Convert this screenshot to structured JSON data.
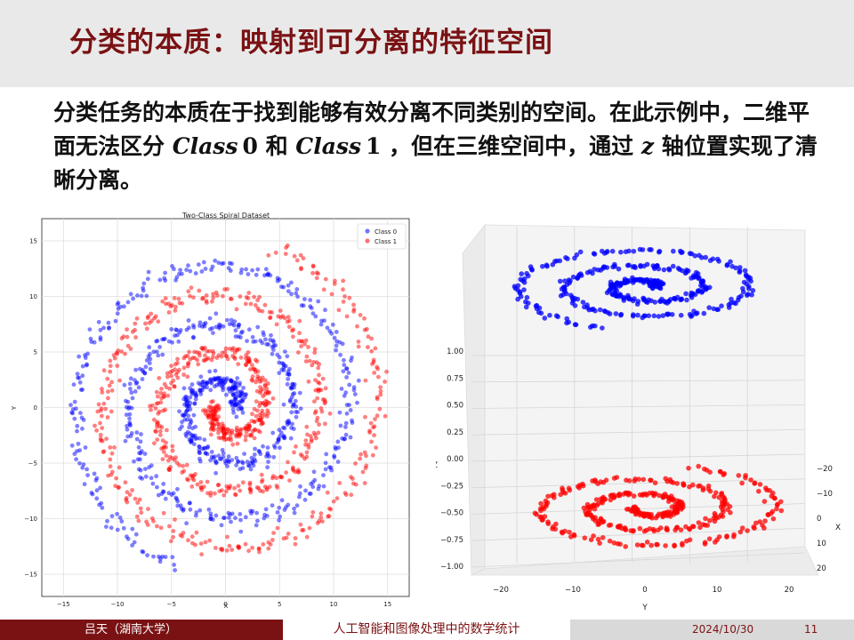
{
  "slide": {
    "title": "分类的本质：映射到可分离的特征空间",
    "para_a": "分类任务的本质在于找到能够有效分离不同类别的空间。在此示例中，二维平面无法区分 ",
    "class0": "Class",
    "class0_num": "0",
    "para_b": " 和 ",
    "class1": "Class",
    "class1_num": "1",
    "para_c": " ，但在三维空间中，通过 ",
    "zvar": "z",
    "para_d": " 轴位置实现了清晰分离。"
  },
  "footer": {
    "author": "吕天（湖南大学）",
    "course": "人工智能和图像处理中的数学统计",
    "date": "2024/10/30",
    "page": "11"
  },
  "chart_data": [
    {
      "type": "scatter",
      "title": "Two-Class Spiral Dataset",
      "xlabel": "X",
      "ylabel": "Y",
      "xlim": [
        -17,
        17
      ],
      "ylim": [
        -17,
        17
      ],
      "xticks": [
        -15,
        -10,
        -5,
        0,
        5,
        10,
        15
      ],
      "yticks": [
        -15,
        -10,
        -5,
        0,
        5,
        10,
        15
      ],
      "grid": true,
      "legend": "top-right",
      "spiral": {
        "start_radius": 1,
        "end_radius": 15,
        "turns": 2.7,
        "points_per_class": 800,
        "noise": 0.4
      },
      "series": [
        {
          "name": "Class 0",
          "color": "#0000ff",
          "z": 1
        },
        {
          "name": "Class 1",
          "color": "#ff0000",
          "z": -1
        }
      ]
    },
    {
      "type": "scatter",
      "xlabel": "X",
      "ylabel": "Y",
      "zlabel": "Z",
      "xticks": [
        "−20",
        "−10",
        "0",
        "10",
        "20"
      ],
      "yticks": [
        "−20",
        "−10",
        "0",
        "10",
        "20"
      ],
      "zticks": [
        "−1.00",
        "−0.75",
        "−0.50",
        "−0.25",
        "0.00",
        "0.25",
        "0.50",
        "0.75",
        "1.00"
      ],
      "zlim": [
        -1,
        1
      ],
      "series": [
        {
          "name": "Class 0",
          "color": "#0000ff",
          "z": 1
        },
        {
          "name": "Class 1",
          "color": "#ff0000",
          "z": -1
        }
      ]
    }
  ]
}
